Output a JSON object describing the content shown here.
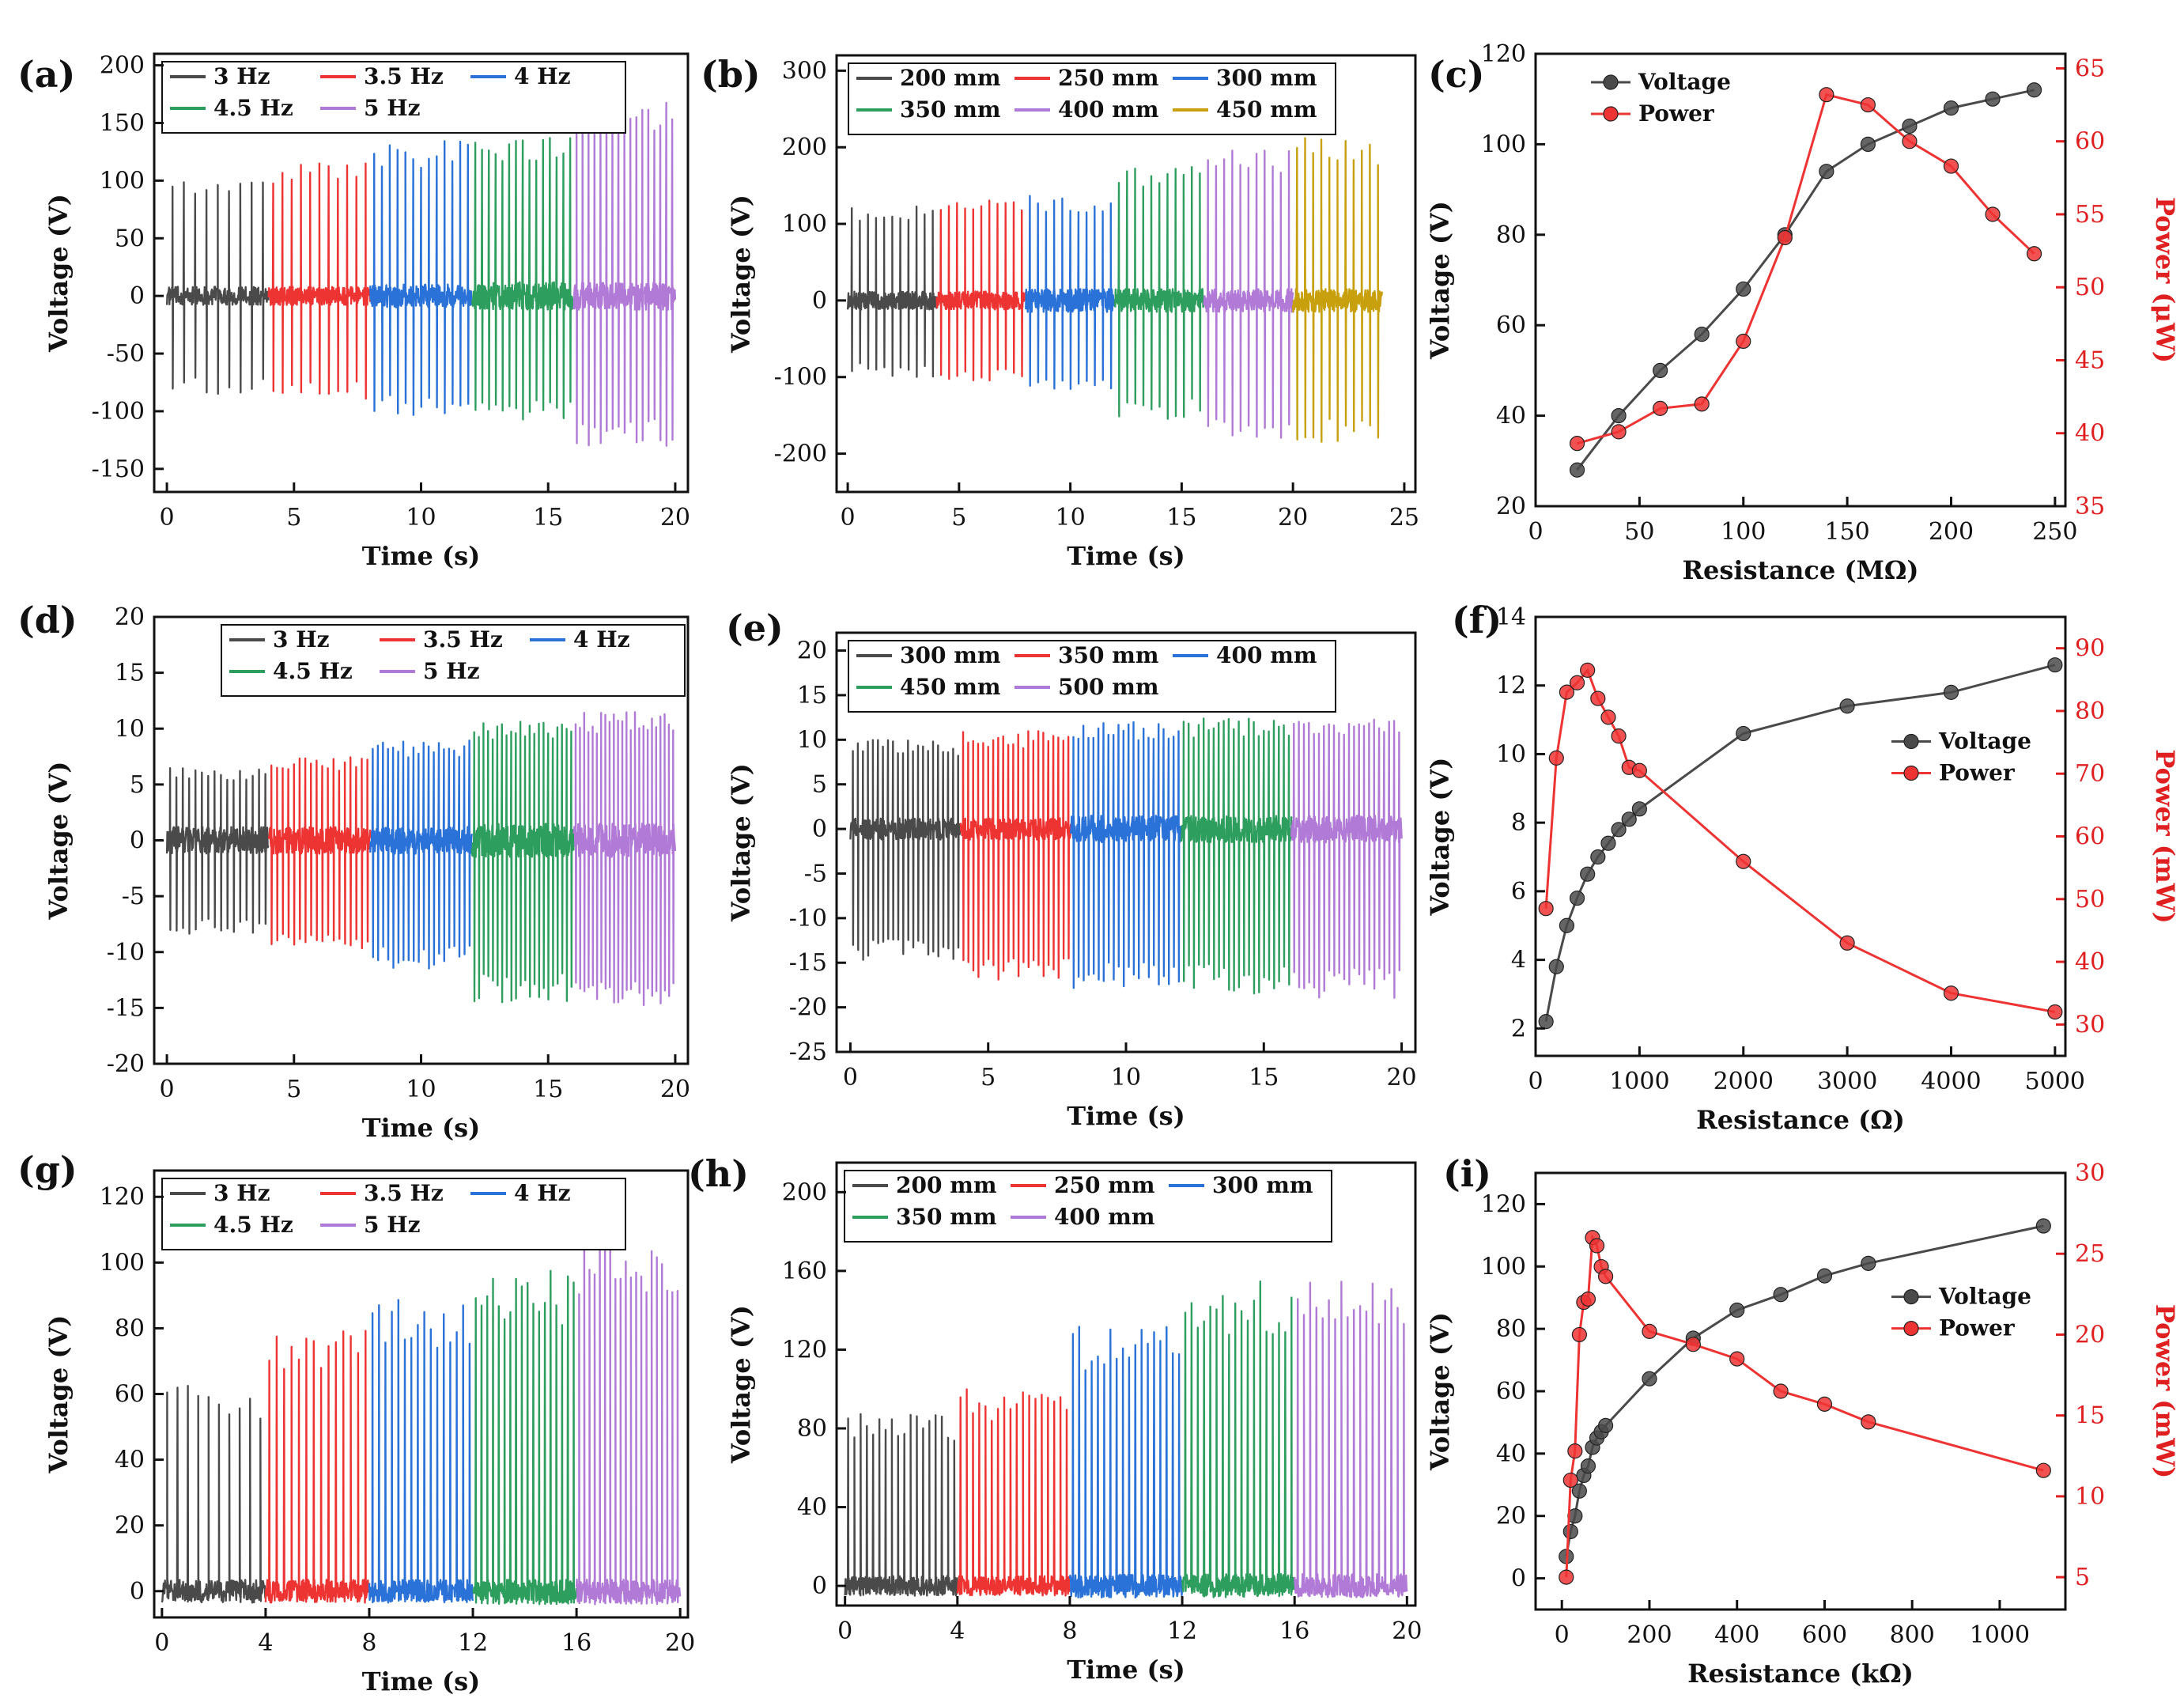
{
  "colors": {
    "black": "#4a4a4a",
    "red": "#ee3333",
    "blue": "#2a72d8",
    "green": "#2e9e5e",
    "purple": "#b07ad6",
    "gold": "#c8a00e",
    "axis": "#111111",
    "red_axis": "#e02020"
  },
  "chart_data": [
    {
      "id": "a",
      "label": "(a)",
      "type": "line",
      "subtype": "waveform",
      "xlabel": "Time (s)",
      "ylabel": "Voltage (V)",
      "xlim": [
        -0.5,
        20.5
      ],
      "ylim": [
        -170,
        210
      ],
      "xticks": [
        0,
        5,
        10,
        15,
        20
      ],
      "xtick_labels": [
        "0",
        "5",
        "10",
        "15",
        "20"
      ],
      "yticks": [
        -150,
        -100,
        -50,
        0,
        50,
        100,
        150,
        200
      ],
      "ytick_labels": [
        "-150",
        "-100",
        "-50",
        "0",
        "50",
        "100",
        "150",
        "200"
      ],
      "legend_rows": [
        [
          "3 Hz",
          "3.5 Hz",
          "4 Hz"
        ],
        [
          "4.5 Hz",
          "5 Hz"
        ]
      ],
      "legend_position": "top-left",
      "series": [
        {
          "name": "3 Hz",
          "color_key": "black",
          "x_start": 0,
          "x_end": 4,
          "pos_peak": 105,
          "neg_peak": -85,
          "noise": 8,
          "count": 9
        },
        {
          "name": "3.5 Hz",
          "color_key": "red",
          "x_start": 4,
          "x_end": 8,
          "pos_peak": 115,
          "neg_peak": -90,
          "noise": 8,
          "count": 11
        },
        {
          "name": "4 Hz",
          "color_key": "blue",
          "x_start": 8,
          "x_end": 12,
          "pos_peak": 135,
          "neg_peak": -105,
          "noise": 10,
          "count": 13
        },
        {
          "name": "4.5 Hz",
          "color_key": "green",
          "x_start": 12,
          "x_end": 16,
          "pos_peak": 138,
          "neg_peak": -110,
          "noise": 12,
          "count": 15
        },
        {
          "name": "5 Hz",
          "color_key": "purple",
          "x_start": 16,
          "x_end": 20,
          "pos_peak": 170,
          "neg_peak": -130,
          "noise": 12,
          "count": 17
        }
      ]
    },
    {
      "id": "b",
      "label": "(b)",
      "type": "line",
      "subtype": "waveform",
      "xlabel": "Time (s)",
      "ylabel": "Voltage (V)",
      "xlim": [
        -0.5,
        25.5
      ],
      "ylim": [
        -250,
        320
      ],
      "xticks": [
        0,
        5,
        10,
        15,
        20,
        25
      ],
      "xtick_labels": [
        "0",
        "5",
        "10",
        "15",
        "20",
        "25"
      ],
      "yticks": [
        -200,
        -100,
        0,
        100,
        200,
        300
      ],
      "ytick_labels": [
        "-200",
        "-100",
        "0",
        "100",
        "200",
        "300"
      ],
      "legend_rows": [
        [
          "200 mm",
          "250 mm",
          "300 mm"
        ],
        [
          "350 mm",
          "400 mm",
          "450 mm"
        ]
      ],
      "legend_position": "top",
      "series": [
        {
          "name": "200 mm",
          "color_key": "black",
          "x_start": 0,
          "x_end": 4,
          "pos_peak": 125,
          "neg_peak": -100,
          "noise": 12,
          "count": 11
        },
        {
          "name": "250 mm",
          "color_key": "red",
          "x_start": 4,
          "x_end": 8,
          "pos_peak": 135,
          "neg_peak": -105,
          "noise": 12,
          "count": 11
        },
        {
          "name": "300 mm",
          "color_key": "blue",
          "x_start": 8,
          "x_end": 12,
          "pos_peak": 140,
          "neg_peak": -125,
          "noise": 15,
          "count": 11
        },
        {
          "name": "350 mm",
          "color_key": "green",
          "x_start": 12,
          "x_end": 16,
          "pos_peak": 180,
          "neg_peak": -155,
          "noise": 15,
          "count": 11
        },
        {
          "name": "400 mm",
          "color_key": "purple",
          "x_start": 16,
          "x_end": 20,
          "pos_peak": 200,
          "neg_peak": -180,
          "noise": 15,
          "count": 11
        },
        {
          "name": "450 mm",
          "color_key": "gold",
          "x_start": 20,
          "x_end": 24,
          "pos_peak": 215,
          "neg_peak": -185,
          "noise": 15,
          "count": 11
        }
      ]
    },
    {
      "id": "c",
      "label": "(c)",
      "type": "line",
      "subtype": "dual-axis",
      "xlabel": "Resistance (MΩ)",
      "ylabel": "Voltage (V)",
      "y2label": "Power (μW)",
      "xlim": [
        0,
        255
      ],
      "ylim": [
        20,
        120
      ],
      "y2lim": [
        35,
        66
      ],
      "xticks": [
        0,
        50,
        100,
        150,
        200,
        250
      ],
      "xtick_labels": [
        "0",
        "50",
        "100",
        "150",
        "200",
        "250"
      ],
      "yticks": [
        20,
        40,
        60,
        80,
        100,
        120
      ],
      "ytick_labels": [
        "20",
        "40",
        "60",
        "80",
        "100",
        "120"
      ],
      "y2ticks": [
        35,
        40,
        45,
        50,
        55,
        60,
        65
      ],
      "y2tick_labels": [
        "35",
        "40",
        "45",
        "50",
        "55",
        "60",
        "65"
      ],
      "legend": [
        "Voltage",
        "Power"
      ],
      "legend_position": "top-left",
      "voltage": {
        "x": [
          20,
          40,
          60,
          80,
          100,
          120,
          140,
          160,
          180,
          200,
          220,
          240
        ],
        "y": [
          28,
          40,
          50,
          58,
          68,
          80,
          94,
          100,
          104,
          108,
          110,
          112
        ]
      },
      "power": {
        "x": [
          20,
          40,
          60,
          80,
          100,
          120,
          140,
          160,
          180,
          200,
          220,
          240
        ],
        "y": [
          39.3,
          40.1,
          41.7,
          42,
          46.3,
          53.4,
          63.2,
          62.5,
          60,
          58.3,
          55,
          52.3
        ]
      }
    },
    {
      "id": "d",
      "label": "(d)",
      "type": "line",
      "subtype": "waveform",
      "xlabel": "Time (s)",
      "ylabel": "Voltage (V)",
      "xlim": [
        -0.5,
        20.5
      ],
      "ylim": [
        -20,
        20
      ],
      "xticks": [
        0,
        5,
        10,
        15,
        20
      ],
      "xtick_labels": [
        "0",
        "5",
        "10",
        "15",
        "20"
      ],
      "yticks": [
        -20,
        -15,
        -10,
        -5,
        0,
        5,
        10,
        15,
        20
      ],
      "ytick_labels": [
        "-20",
        "-15",
        "-10",
        "-5",
        "0",
        "5",
        "10",
        "15",
        "20"
      ],
      "legend_rows": [
        [
          "3 Hz",
          "3.5 Hz",
          "4 Hz"
        ],
        [
          "4.5 Hz",
          "5 Hz"
        ]
      ],
      "legend_position": "top-right",
      "series": [
        {
          "name": "3 Hz",
          "color_key": "black",
          "x_start": 0,
          "x_end": 4,
          "pos_peak": 6.5,
          "neg_peak": -8.5,
          "noise": 1.2,
          "count": 16
        },
        {
          "name": "3.5 Hz",
          "color_key": "red",
          "x_start": 4,
          "x_end": 8,
          "pos_peak": 7.5,
          "neg_peak": -10,
          "noise": 1.2,
          "count": 18
        },
        {
          "name": "4 Hz",
          "color_key": "blue",
          "x_start": 8,
          "x_end": 12,
          "pos_peak": 9,
          "neg_peak": -11.5,
          "noise": 1.2,
          "count": 20
        },
        {
          "name": "4.5 Hz",
          "color_key": "green",
          "x_start": 12,
          "x_end": 16,
          "pos_peak": 11,
          "neg_peak": -14.5,
          "noise": 1.5,
          "count": 22
        },
        {
          "name": "5 Hz",
          "color_key": "purple",
          "x_start": 16,
          "x_end": 20,
          "pos_peak": 11.5,
          "neg_peak": -15,
          "noise": 1.5,
          "count": 24
        }
      ]
    },
    {
      "id": "e",
      "label": "(e)",
      "type": "line",
      "subtype": "waveform",
      "xlabel": "Time (s)",
      "ylabel": "Voltage (V)",
      "xlim": [
        -0.5,
        20.5
      ],
      "ylim": [
        -25,
        22
      ],
      "xticks": [
        0,
        5,
        10,
        15,
        20
      ],
      "xtick_labels": [
        "0",
        "5",
        "10",
        "15",
        "20"
      ],
      "yticks": [
        -25,
        -20,
        -15,
        -10,
        -5,
        0,
        5,
        10,
        15,
        20
      ],
      "ytick_labels": [
        "-25",
        "-20",
        "-15",
        "-10",
        "-5",
        "0",
        "5",
        "10",
        "15",
        "20"
      ],
      "legend_rows": [
        [
          "300 mm",
          "350 mm",
          "400 mm"
        ],
        [
          "450 mm",
          "500 mm"
        ]
      ],
      "legend_position": "top",
      "series": [
        {
          "name": "300 mm",
          "color_key": "black",
          "x_start": 0,
          "x_end": 4,
          "pos_peak": 10,
          "neg_peak": -15,
          "noise": 1.2,
          "count": 22
        },
        {
          "name": "350 mm",
          "color_key": "red",
          "x_start": 4,
          "x_end": 8,
          "pos_peak": 11,
          "neg_peak": -17,
          "noise": 1.2,
          "count": 22
        },
        {
          "name": "400 mm",
          "color_key": "blue",
          "x_start": 8,
          "x_end": 12,
          "pos_peak": 12,
          "neg_peak": -18,
          "noise": 1.5,
          "count": 22
        },
        {
          "name": "450 mm",
          "color_key": "green",
          "x_start": 12,
          "x_end": 16,
          "pos_peak": 12.5,
          "neg_peak": -18.5,
          "noise": 1.5,
          "count": 22
        },
        {
          "name": "500 mm",
          "color_key": "purple",
          "x_start": 16,
          "x_end": 20,
          "pos_peak": 12.5,
          "neg_peak": -19,
          "noise": 1.5,
          "count": 22
        }
      ]
    },
    {
      "id": "f",
      "label": "(f)",
      "type": "line",
      "subtype": "dual-axis",
      "xlabel": "Resistance (Ω)",
      "ylabel": "Voltage (V)",
      "y2label": "Power (mW)",
      "xlim": [
        0,
        5100
      ],
      "ylim": [
        1.2,
        14
      ],
      "y2lim": [
        25,
        95
      ],
      "xticks": [
        0,
        1000,
        2000,
        3000,
        4000,
        5000
      ],
      "xtick_labels": [
        "0",
        "1000",
        "2000",
        "3000",
        "4000",
        "5000"
      ],
      "yticks": [
        2,
        4,
        6,
        8,
        10,
        12,
        14
      ],
      "ytick_labels": [
        "2",
        "4",
        "6",
        "8",
        "10",
        "12",
        "14"
      ],
      "y2ticks": [
        30,
        40,
        50,
        60,
        70,
        80,
        90
      ],
      "y2tick_labels": [
        "30",
        "40",
        "50",
        "60",
        "70",
        "80",
        "90"
      ],
      "legend": [
        "Voltage",
        "Power"
      ],
      "legend_position": "right",
      "voltage": {
        "x": [
          100,
          200,
          300,
          400,
          500,
          600,
          700,
          800,
          900,
          1000,
          2000,
          3000,
          4000,
          5000
        ],
        "y": [
          2.2,
          3.8,
          5,
          5.8,
          6.5,
          7,
          7.4,
          7.8,
          8.1,
          8.4,
          10.6,
          11.4,
          11.8,
          12.6
        ]
      },
      "power": {
        "x": [
          100,
          200,
          300,
          400,
          500,
          600,
          700,
          800,
          900,
          1000,
          2000,
          3000,
          4000,
          5000
        ],
        "y": [
          48.5,
          72.5,
          83,
          84.5,
          86.5,
          82,
          79,
          76,
          71,
          70.5,
          56,
          43,
          35,
          32
        ]
      }
    },
    {
      "id": "g",
      "label": "(g)",
      "type": "line",
      "subtype": "waveform",
      "xlabel": "Time (s)",
      "ylabel": "Voltage (V)",
      "xlim": [
        -0.3,
        20.3
      ],
      "ylim": [
        -8,
        128
      ],
      "xticks": [
        0,
        4,
        8,
        12,
        16,
        20
      ],
      "xtick_labels": [
        "0",
        "4",
        "8",
        "12",
        "16",
        "20"
      ],
      "yticks": [
        0,
        20,
        40,
        60,
        80,
        100,
        120
      ],
      "ytick_labels": [
        "0",
        "20",
        "40",
        "60",
        "80",
        "100",
        "120"
      ],
      "legend_rows": [
        [
          "3 Hz",
          "3.5 Hz",
          "4 Hz"
        ],
        [
          "4.5 Hz",
          "5 Hz"
        ]
      ],
      "legend_position": "top-left",
      "series": [
        {
          "name": "3 Hz",
          "color_key": "black",
          "x_start": 0,
          "x_end": 4,
          "pos_peak": 64,
          "neg_peak": -2,
          "noise": 3.5,
          "count": 10
        },
        {
          "name": "3.5 Hz",
          "color_key": "red",
          "x_start": 4,
          "x_end": 8,
          "pos_peak": 80,
          "neg_peak": -2,
          "noise": 3.5,
          "count": 14
        },
        {
          "name": "4 Hz",
          "color_key": "blue",
          "x_start": 8,
          "x_end": 12,
          "pos_peak": 90,
          "neg_peak": -3,
          "noise": 3.5,
          "count": 16
        },
        {
          "name": "4.5 Hz",
          "color_key": "green",
          "x_start": 12,
          "x_end": 16,
          "pos_peak": 98,
          "neg_peak": -4,
          "noise": 3.5,
          "count": 18
        },
        {
          "name": "5 Hz",
          "color_key": "purple",
          "x_start": 16,
          "x_end": 20,
          "pos_peak": 108,
          "neg_peak": -4,
          "noise": 3.5,
          "count": 20
        }
      ]
    },
    {
      "id": "h",
      "label": "(h)",
      "type": "line",
      "subtype": "waveform",
      "xlabel": "Time (s)",
      "ylabel": "Voltage (V)",
      "xlim": [
        -0.3,
        20.3
      ],
      "ylim": [
        -10,
        215
      ],
      "xticks": [
        0,
        4,
        8,
        12,
        16,
        20
      ],
      "xtick_labels": [
        "0",
        "4",
        "8",
        "12",
        "16",
        "20"
      ],
      "yticks": [
        0,
        40,
        80,
        120,
        160,
        200
      ],
      "ytick_labels": [
        "0",
        "40",
        "80",
        "120",
        "160",
        "200"
      ],
      "legend_rows": [
        [
          "200 mm",
          "250 mm",
          "300 mm"
        ],
        [
          "350 mm",
          "400 mm"
        ]
      ],
      "legend_position": "top-left",
      "series": [
        {
          "name": "200 mm",
          "color_key": "black",
          "x_start": 0,
          "x_end": 4,
          "pos_peak": 88,
          "neg_peak": -2,
          "noise": 5,
          "count": 18
        },
        {
          "name": "250 mm",
          "color_key": "red",
          "x_start": 4,
          "x_end": 8,
          "pos_peak": 100,
          "neg_peak": -2,
          "noise": 5,
          "count": 18
        },
        {
          "name": "300 mm",
          "color_key": "blue",
          "x_start": 8,
          "x_end": 12,
          "pos_peak": 132,
          "neg_peak": -3,
          "noise": 6,
          "count": 18
        },
        {
          "name": "350 mm",
          "color_key": "green",
          "x_start": 12,
          "x_end": 16,
          "pos_peak": 155,
          "neg_peak": -3,
          "noise": 6,
          "count": 18
        },
        {
          "name": "400 mm",
          "color_key": "purple",
          "x_start": 16,
          "x_end": 20,
          "pos_peak": 158,
          "neg_peak": -3,
          "noise": 6,
          "count": 18
        }
      ]
    },
    {
      "id": "i",
      "label": "(i)",
      "type": "line",
      "subtype": "dual-axis",
      "xlabel": "Resistance (kΩ)",
      "ylabel": "Voltage (V)",
      "y2label": "Power (mW)",
      "xlim": [
        -60,
        1150
      ],
      "ylim": [
        -10,
        130
      ],
      "y2lim": [
        3,
        30
      ],
      "xticks": [
        0,
        200,
        400,
        600,
        800,
        1000
      ],
      "xtick_labels": [
        "0",
        "200",
        "400",
        "600",
        "800",
        "1000"
      ],
      "yticks": [
        0,
        20,
        40,
        60,
        80,
        100,
        120
      ],
      "ytick_labels": [
        "0",
        "20",
        "40",
        "60",
        "80",
        "100",
        "120"
      ],
      "y2ticks": [
        5,
        10,
        15,
        20,
        25,
        30
      ],
      "y2tick_labels": [
        "5",
        "10",
        "15",
        "20",
        "25",
        "30"
      ],
      "legend": [
        "Voltage",
        "Power"
      ],
      "legend_position": "right",
      "voltage": {
        "x": [
          10,
          20,
          30,
          40,
          50,
          60,
          70,
          80,
          90,
          100,
          200,
          300,
          400,
          500,
          600,
          700,
          1100
        ],
        "y": [
          7,
          15,
          20,
          28,
          33,
          36,
          42,
          45,
          47,
          49,
          64,
          77,
          86,
          91,
          97,
          101,
          113
        ]
      },
      "power": {
        "x": [
          10,
          20,
          30,
          40,
          50,
          60,
          70,
          80,
          90,
          100,
          200,
          300,
          400,
          500,
          600,
          700,
          1100
        ],
        "y": [
          5,
          11,
          12.8,
          20,
          22,
          22.2,
          26,
          25.5,
          24.2,
          23.6,
          20.2,
          19.4,
          18.5,
          16.5,
          15.7,
          14.6,
          11.6
        ]
      }
    }
  ]
}
